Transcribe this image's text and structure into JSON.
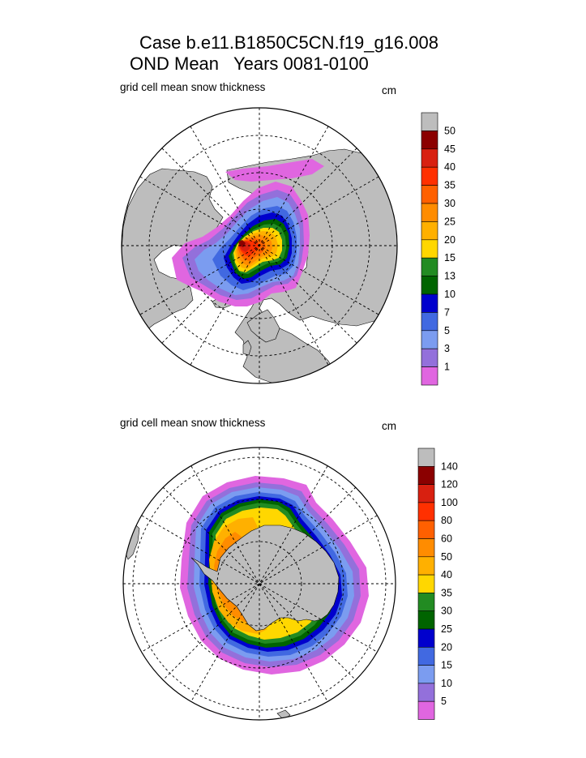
{
  "title_line1": "Case b.e11.B1850C5CN.f19_g16.008",
  "title_line2": "OND Mean   Years 0081-0100",
  "colors": {
    "land": "#bdbdbd",
    "grid": "#000000",
    "background": "#ffffff"
  },
  "chart_data": [
    {
      "type": "heatmap",
      "projection": "polar-stereographic",
      "hemisphere": "north",
      "title": "grid cell mean snow thickness",
      "units": "cm",
      "colorbar": {
        "labels": [
          "1",
          "3",
          "5",
          "7",
          "10",
          "13",
          "15",
          "20",
          "25",
          "30",
          "35",
          "40",
          "45",
          "50"
        ],
        "colors": [
          "#e066e0",
          "#9370db",
          "#7b9cf0",
          "#4169e1",
          "#0000cd",
          "#006400",
          "#228b22",
          "#ffd700",
          "#ffb000",
          "#ff8c00",
          "#ff6000",
          "#ff3000",
          "#d82010",
          "#8b0000",
          "#bdbdbd"
        ]
      }
    },
    {
      "type": "heatmap",
      "projection": "polar-stereographic",
      "hemisphere": "south",
      "title": "grid cell mean snow thickness",
      "units": "cm",
      "colorbar": {
        "labels": [
          "5",
          "10",
          "15",
          "20",
          "25",
          "30",
          "35",
          "40",
          "50",
          "60",
          "80",
          "100",
          "120",
          "140"
        ],
        "colors": [
          "#e066e0",
          "#9370db",
          "#7b9cf0",
          "#4169e1",
          "#0000cd",
          "#006400",
          "#228b22",
          "#ffd700",
          "#ffb000",
          "#ff8c00",
          "#ff6000",
          "#ff3000",
          "#d82010",
          "#8b0000",
          "#bdbdbd"
        ]
      }
    }
  ]
}
